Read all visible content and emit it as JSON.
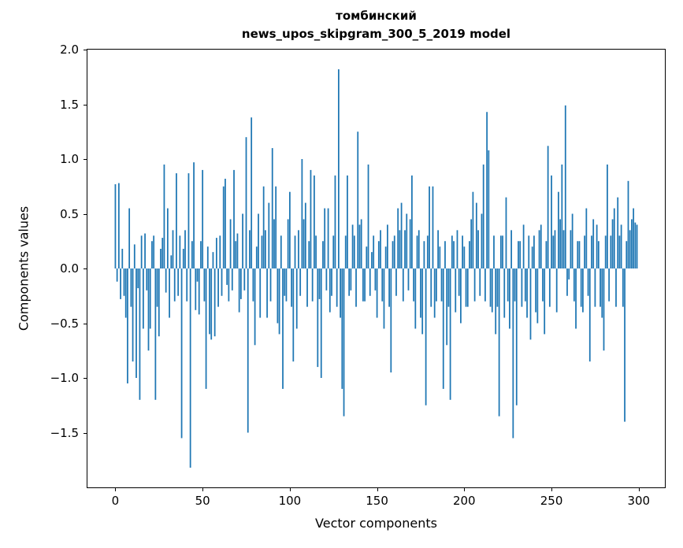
{
  "chart_data": {
    "type": "bar",
    "title_line1": "томбинский",
    "title_line2": "news_upos_skipgram_300_5_2019 model",
    "xlabel": "Vector components",
    "ylabel": "Components values",
    "x_is_index": true,
    "n_components": 300,
    "xlim": [
      -16,
      315
    ],
    "ylim": [
      -2.0,
      2.0
    ],
    "x_ticks": [
      0,
      50,
      100,
      150,
      200,
      250,
      300
    ],
    "y_ticks": [
      2.0,
      1.5,
      1.0,
      0.5,
      0.0,
      -0.5,
      -1.0,
      -1.5
    ],
    "bar_color": "#1f77b4",
    "bar_width": 0.8,
    "grid": false,
    "legend": "none",
    "values": [
      0.77,
      -0.12,
      0.78,
      -0.28,
      0.18,
      -0.25,
      -0.45,
      -1.05,
      0.55,
      -0.35,
      -0.85,
      0.22,
      -1.0,
      -0.18,
      -1.2,
      0.3,
      -0.55,
      0.32,
      -0.2,
      -0.75,
      -0.55,
      0.25,
      0.3,
      -1.2,
      -0.35,
      -0.62,
      0.18,
      0.28,
      0.95,
      -0.22,
      0.55,
      -0.45,
      0.12,
      0.35,
      -0.3,
      0.87,
      -0.25,
      0.3,
      -1.55,
      0.18,
      0.35,
      -0.3,
      0.87,
      -1.82,
      0.25,
      0.97,
      -0.38,
      -0.12,
      -0.42,
      0.25,
      0.9,
      -0.3,
      -1.1,
      0.2,
      -0.6,
      -0.65,
      0.15,
      -0.62,
      0.28,
      -0.35,
      0.3,
      -0.25,
      0.75,
      0.82,
      -0.15,
      -0.3,
      0.45,
      -0.2,
      0.9,
      0.25,
      0.32,
      -0.4,
      -0.28,
      0.5,
      -0.2,
      1.2,
      -1.5,
      0.35,
      1.38,
      -0.3,
      -0.7,
      0.2,
      0.5,
      -0.45,
      0.3,
      0.75,
      0.35,
      -0.45,
      0.6,
      -0.3,
      1.1,
      0.45,
      0.75,
      -0.5,
      -0.6,
      0.3,
      -1.1,
      -0.25,
      -0.3,
      0.45,
      0.7,
      -0.35,
      -0.85,
      0.3,
      -0.55,
      0.35,
      -0.25,
      1.0,
      0.45,
      0.6,
      -0.35,
      0.25,
      0.9,
      -0.3,
      0.85,
      0.3,
      -0.9,
      -0.28,
      -1.0,
      0.25,
      0.55,
      -0.2,
      0.55,
      -0.4,
      -0.25,
      0.3,
      0.85,
      -0.35,
      1.82,
      -0.45,
      -1.1,
      -1.35,
      0.3,
      0.85,
      -0.25,
      -0.2,
      0.4,
      0.3,
      -0.35,
      1.25,
      0.4,
      0.45,
      -0.3,
      -0.3,
      0.2,
      0.95,
      -0.25,
      0.15,
      0.3,
      -0.2,
      -0.45,
      0.25,
      0.35,
      -0.3,
      -0.55,
      0.2,
      0.4,
      -0.35,
      -0.95,
      0.25,
      0.3,
      -0.25,
      0.55,
      0.35,
      0.6,
      -0.3,
      0.35,
      0.5,
      -0.2,
      0.45,
      0.85,
      -0.3,
      -0.55,
      0.3,
      0.35,
      -0.45,
      -0.6,
      0.25,
      -1.25,
      0.3,
      0.75,
      -0.35,
      0.75,
      -0.45,
      -0.3,
      0.35,
      0.2,
      -0.3,
      -1.1,
      0.25,
      -0.7,
      -0.35,
      -1.2,
      0.3,
      0.25,
      -0.4,
      0.35,
      -0.25,
      -0.5,
      0.3,
      0.2,
      -0.35,
      -0.35,
      0.25,
      0.45,
      0.7,
      -0.3,
      0.6,
      0.35,
      -0.25,
      0.5,
      0.95,
      -0.3,
      1.43,
      1.08,
      -0.35,
      -0.4,
      0.3,
      -0.6,
      -0.35,
      -1.35,
      0.3,
      0.3,
      -0.45,
      0.65,
      -0.3,
      -0.55,
      0.35,
      -1.55,
      -0.3,
      -1.25,
      0.25,
      0.25,
      -0.35,
      0.4,
      -0.3,
      -0.45,
      0.3,
      -0.65,
      0.2,
      0.3,
      -0.4,
      -0.5,
      0.35,
      0.4,
      -0.3,
      -0.6,
      0.25,
      1.12,
      -0.35,
      0.85,
      0.3,
      0.35,
      -0.4,
      0.7,
      0.45,
      0.95,
      0.35,
      1.49,
      -0.25,
      -0.1,
      0.35,
      0.5,
      -0.3,
      -0.55,
      0.25,
      0.25,
      -0.35,
      -0.4,
      0.3,
      0.55,
      -0.25,
      -0.85,
      0.3,
      0.45,
      -0.35,
      0.4,
      0.25,
      -0.35,
      -0.45,
      -0.75,
      0.3,
      0.95,
      -0.3,
      0.3,
      0.45,
      0.55,
      -0.35,
      0.65,
      0.3,
      0.4,
      -0.35,
      -1.4,
      0.25,
      0.8,
      0.35,
      0.45,
      0.55,
      0.42,
      0.4
    ]
  }
}
